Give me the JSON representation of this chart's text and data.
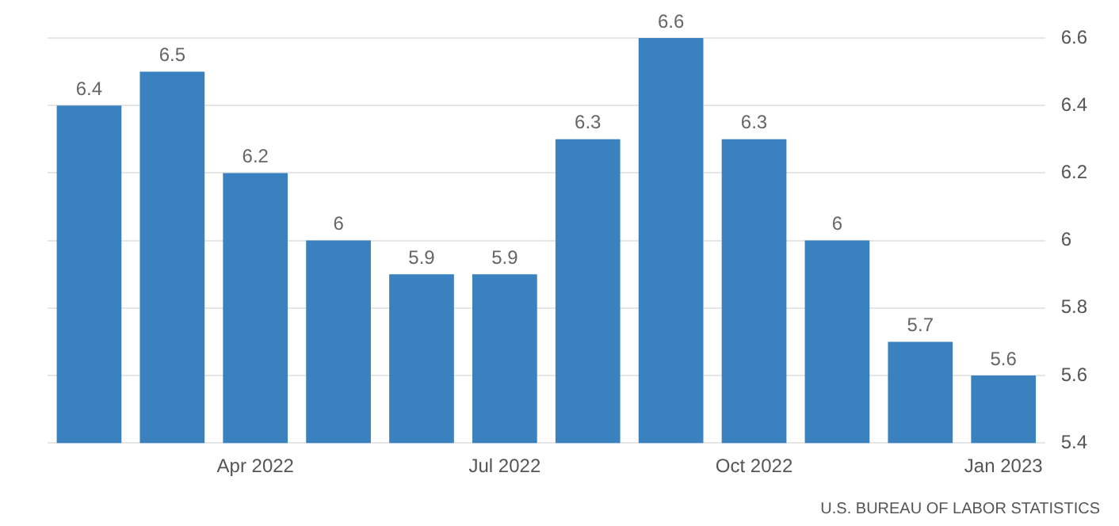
{
  "chart_data": {
    "type": "bar",
    "categories": [
      null,
      null,
      "Apr 2022",
      null,
      null,
      "Jul 2022",
      null,
      null,
      "Oct 2022",
      null,
      null,
      "Jan 2023"
    ],
    "values": [
      6.4,
      6.5,
      6.2,
      6,
      5.9,
      5.9,
      6.3,
      6.6,
      6.3,
      6,
      5.7,
      5.6
    ],
    "color": "#3a81bf",
    "ylim": [
      5.4,
      6.6
    ],
    "yticks": [
      5.4,
      5.6,
      5.8,
      6,
      6.2,
      6.4,
      6.6
    ],
    "grid": "y",
    "legend": false,
    "data_labels": true,
    "annotations": [
      "U.S. BUREAU OF LABOR STATISTICS"
    ]
  }
}
